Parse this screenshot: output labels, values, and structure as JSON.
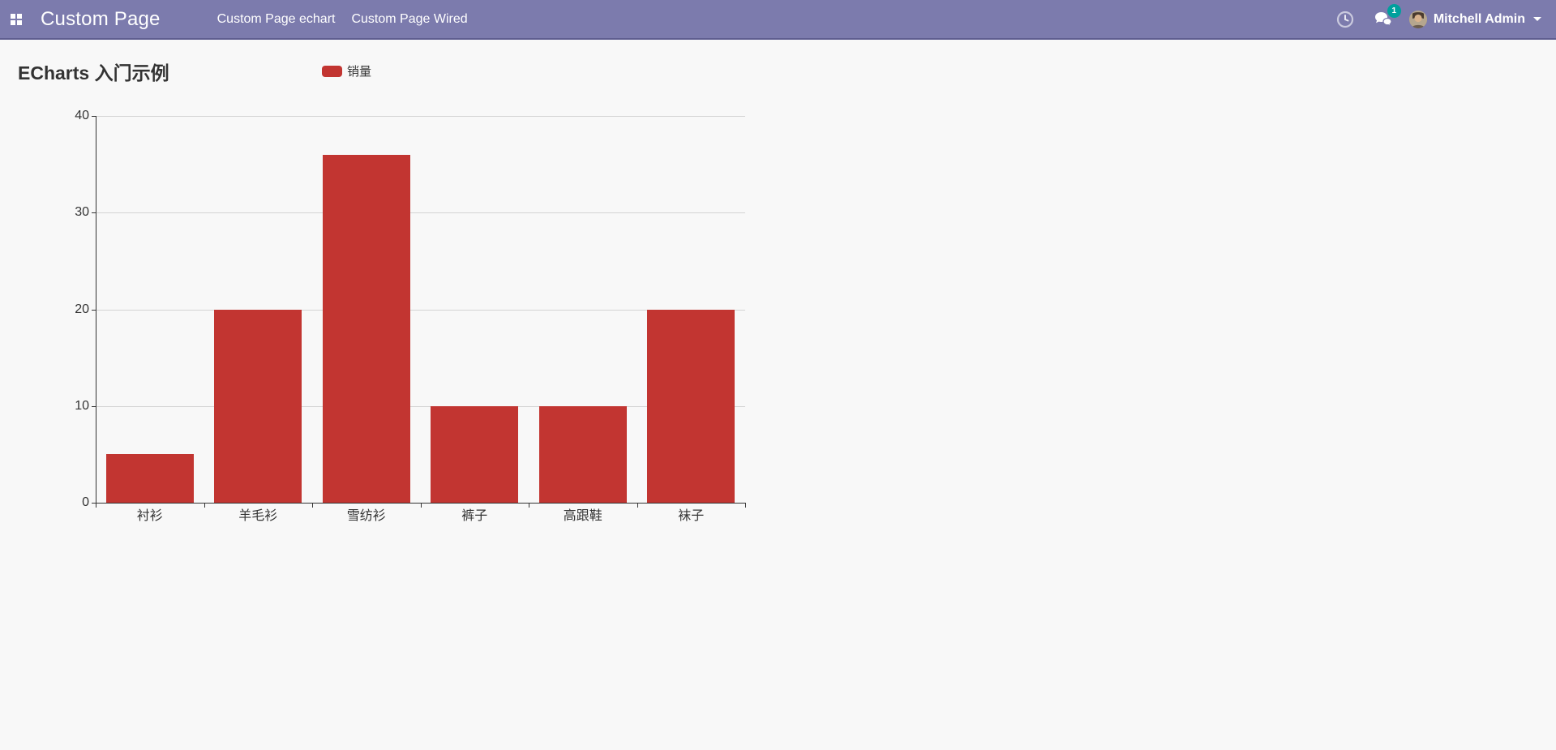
{
  "header": {
    "brand": "Custom Page",
    "menu": [
      {
        "label": "Custom Page echart"
      },
      {
        "label": "Custom Page Wired"
      }
    ],
    "systray": {
      "activity_icon": "clock-icon",
      "messages_icon": "chat-bubbles-icon",
      "messages_badge": "1",
      "user_name": "Mitchell Admin"
    }
  },
  "colors": {
    "header_bg": "#7c7bad",
    "header_border": "#5f5e90",
    "badge_teal": "#00a09d",
    "page_bg": "#f8f8f8",
    "axis": "#333333",
    "gridline": "#d4d4d4"
  },
  "chart_data": {
    "type": "bar",
    "title": "ECharts 入门示例",
    "legend_entries": [
      "销量"
    ],
    "legend_position": "top",
    "categories": [
      "衬衫",
      "羊毛衫",
      "雪纺衫",
      "裤子",
      "高跟鞋",
      "袜子"
    ],
    "series": [
      {
        "name": "销量",
        "values": [
          5,
          20,
          36,
          10,
          10,
          20
        ]
      }
    ],
    "xlabel": "",
    "ylabel": "",
    "ylim": [
      0,
      40
    ],
    "yticks": [
      0,
      10,
      20,
      30,
      40
    ],
    "bar_color": "#c23531",
    "grid": true
  }
}
